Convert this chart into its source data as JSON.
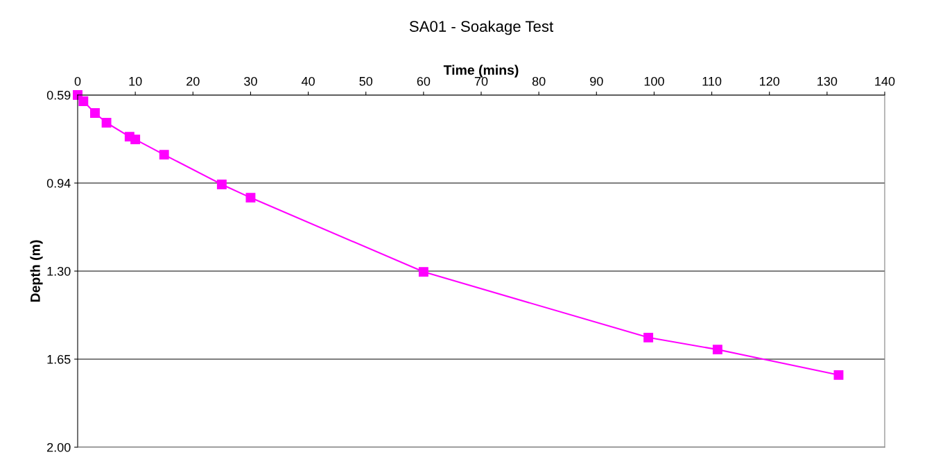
{
  "chart_data": {
    "type": "line",
    "title": "SA01 - Soakage Test",
    "xlabel": "Time (mins)",
    "ylabel": "Depth (m)",
    "x": [
      0,
      1,
      3,
      5,
      9,
      10,
      15,
      25,
      30,
      60,
      99,
      111,
      132
    ],
    "series": [
      {
        "color": "#ff00ff",
        "values": [
          0.59,
          0.615,
          0.662,
          0.701,
          0.757,
          0.768,
          0.829,
          0.948,
          1.001,
          1.298,
          1.561,
          1.609,
          1.711
        ]
      }
    ],
    "xlim": [
      0,
      140
    ],
    "xticks": [
      0,
      10,
      20,
      30,
      40,
      50,
      60,
      70,
      80,
      90,
      100,
      110,
      120,
      130,
      140
    ],
    "ylim": [
      2.0,
      0.59
    ],
    "yticks": [
      {
        "value": 0.59,
        "label": "0.59"
      },
      {
        "value": 0.9425,
        "label": "0.94"
      },
      {
        "value": 1.295,
        "label": "1.30"
      },
      {
        "value": 1.6475,
        "label": "1.65"
      },
      {
        "value": 2.0,
        "label": "2.00"
      }
    ],
    "grid": "y",
    "marker": "square",
    "line_style": "solid",
    "legend": false
  }
}
